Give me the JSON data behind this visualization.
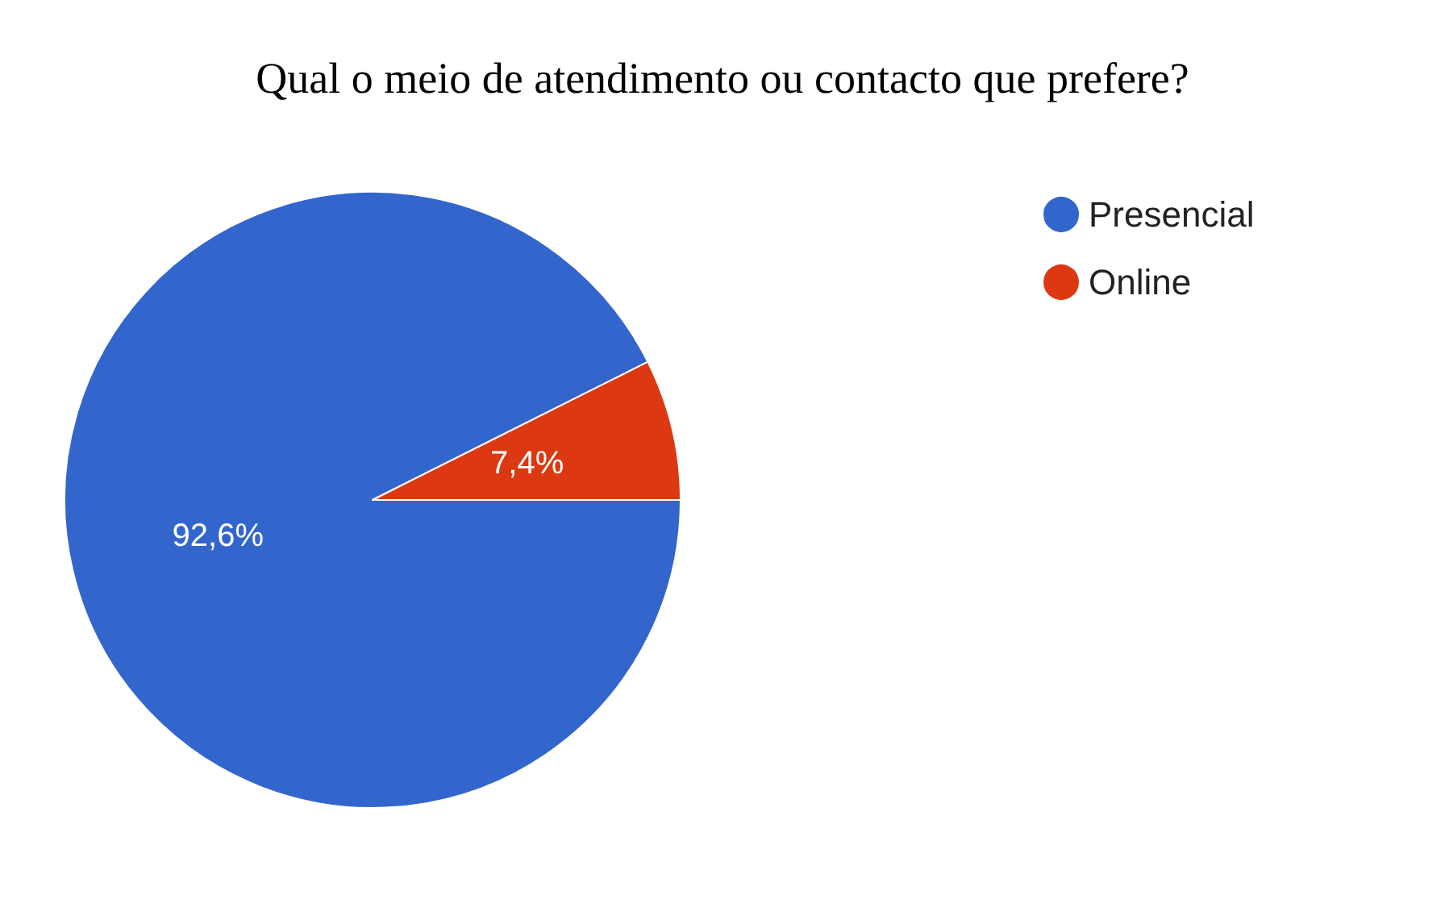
{
  "chart_data": {
    "type": "pie",
    "title": "Qual o meio de atendimento ou contacto que prefere?",
    "categories": [
      "Presencial",
      "Online"
    ],
    "values": [
      92.6,
      7.4
    ],
    "colors": [
      "#3366cc",
      "#dc3912"
    ],
    "value_labels": [
      "92,6%",
      "7,4%"
    ],
    "legend": "top right"
  }
}
